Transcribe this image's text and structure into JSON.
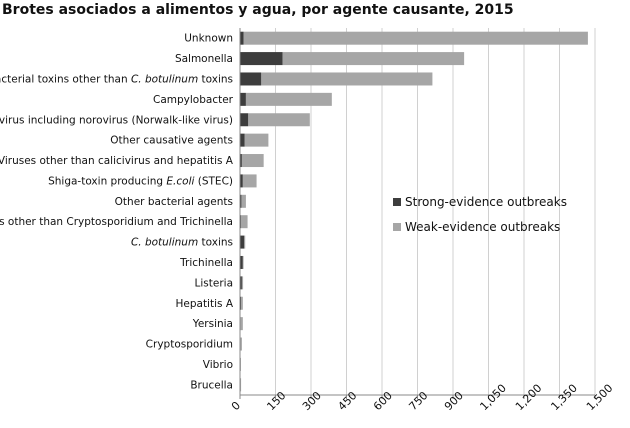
{
  "chart_data": {
    "type": "bar",
    "orientation": "horizontal",
    "stacked": true,
    "title": "Brotes asociados a alimentos y agua, por agente causante, 2015",
    "categories": [
      "Unknown",
      "Salmonella",
      "Bacterial toxins other than C. botulinum toxins",
      "Campylobacter",
      "Calicivirus including norovirus (Norwalk-like virus)",
      "Other causative agents",
      "Viruses other than calicivirus and hepatitis A",
      "Shiga-toxin producing E.coli (STEC)",
      "Other bacterial agents",
      "Parasites other than Cryptosporidium and Trichinella",
      "C. botulinum toxins",
      "Trichinella",
      "Listeria",
      "Hepatitis A",
      "Yersinia",
      "Cryptosporidium",
      "Vibrio",
      "Brucella"
    ],
    "series": [
      {
        "name": "Strong-evidence outbreaks",
        "color": "#3d3d3d",
        "values": [
          15,
          180,
          90,
          25,
          35,
          20,
          8,
          12,
          6,
          4,
          18,
          12,
          8,
          5,
          3,
          3,
          1,
          2
        ]
      },
      {
        "name": "Weak-evidence outbreaks",
        "color": "#a6a6a6",
        "values": [
          1455,
          767,
          723,
          363,
          260,
          100,
          92,
          58,
          19,
          28,
          4,
          3,
          5,
          7,
          9,
          5,
          3,
          1
        ]
      }
    ],
    "xlabel": "",
    "ylabel": "",
    "xlim": [
      0,
      1500
    ],
    "xticks": [
      "0",
      "150",
      "300",
      "450",
      "600",
      "750",
      "900",
      "1,050",
      "1,200",
      "1,350",
      "1,500"
    ],
    "xtick_values": [
      0,
      150,
      300,
      450,
      600,
      750,
      900,
      1050,
      1200,
      1350,
      1500
    ],
    "grid": true,
    "legend_position": "right-middle"
  }
}
